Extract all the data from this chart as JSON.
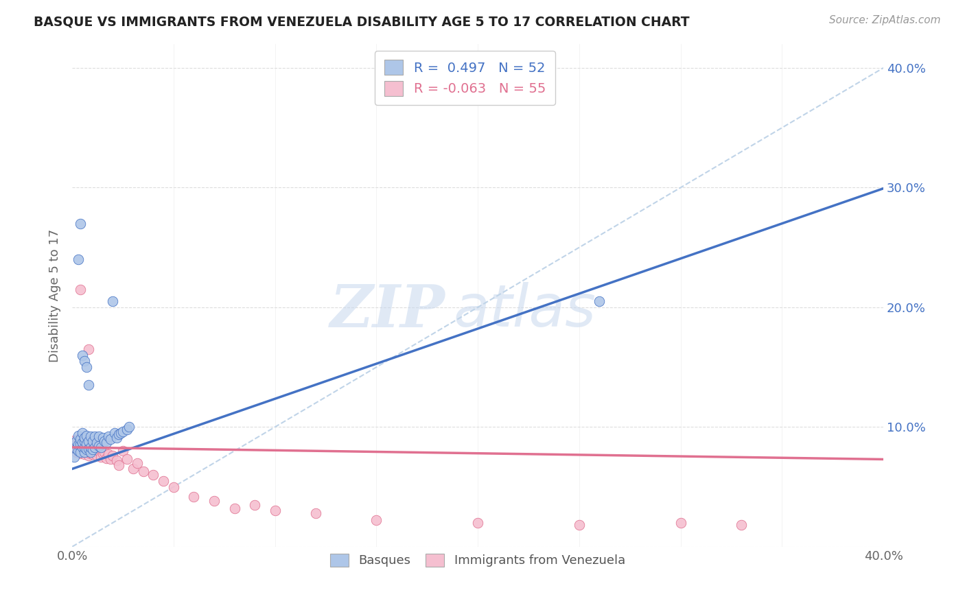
{
  "title": "BASQUE VS IMMIGRANTS FROM VENEZUELA DISABILITY AGE 5 TO 17 CORRELATION CHART",
  "source": "Source: ZipAtlas.com",
  "ylabel": "Disability Age 5 to 17",
  "xlim": [
    0.0,
    0.4
  ],
  "ylim": [
    0.0,
    0.42
  ],
  "basque_color": "#aec6e8",
  "venezuela_color": "#f5bfd0",
  "basque_line_color": "#4472c4",
  "venezuela_line_color": "#e07090",
  "diagonal_color": "#c0d4e8",
  "R_basque": 0.497,
  "N_basque": 52,
  "R_venezuela": -0.063,
  "N_venezuela": 55,
  "legend_label_basque": "Basques",
  "legend_label_venezuela": "Immigrants from Venezuela",
  "watermark_zip": "ZIP",
  "watermark_atlas": "atlas",
  "basque_x": [
    0.001,
    0.002,
    0.002,
    0.003,
    0.003,
    0.003,
    0.004,
    0.004,
    0.004,
    0.005,
    0.005,
    0.005,
    0.006,
    0.006,
    0.006,
    0.006,
    0.007,
    0.007,
    0.007,
    0.008,
    0.008,
    0.009,
    0.009,
    0.009,
    0.01,
    0.01,
    0.011,
    0.011,
    0.012,
    0.013,
    0.013,
    0.014,
    0.015,
    0.016,
    0.017,
    0.018,
    0.019,
    0.021,
    0.022,
    0.023,
    0.024,
    0.025,
    0.027,
    0.028,
    0.003,
    0.004,
    0.005,
    0.006,
    0.007,
    0.008,
    0.02,
    0.26
  ],
  "basque_y": [
    0.075,
    0.082,
    0.088,
    0.08,
    0.085,
    0.093,
    0.079,
    0.086,
    0.09,
    0.083,
    0.087,
    0.095,
    0.079,
    0.083,
    0.088,
    0.091,
    0.081,
    0.086,
    0.093,
    0.082,
    0.088,
    0.079,
    0.083,
    0.092,
    0.081,
    0.088,
    0.083,
    0.092,
    0.087,
    0.084,
    0.092,
    0.083,
    0.091,
    0.088,
    0.087,
    0.092,
    0.09,
    0.095,
    0.091,
    0.094,
    0.095,
    0.096,
    0.098,
    0.1,
    0.24,
    0.27,
    0.16,
    0.155,
    0.15,
    0.135,
    0.205,
    0.205
  ],
  "venezuela_x": [
    0.001,
    0.001,
    0.002,
    0.002,
    0.003,
    0.003,
    0.003,
    0.004,
    0.004,
    0.005,
    0.005,
    0.005,
    0.006,
    0.006,
    0.007,
    0.007,
    0.008,
    0.008,
    0.009,
    0.009,
    0.01,
    0.01,
    0.011,
    0.012,
    0.013,
    0.014,
    0.015,
    0.016,
    0.017,
    0.018,
    0.019,
    0.02,
    0.022,
    0.023,
    0.025,
    0.027,
    0.03,
    0.032,
    0.035,
    0.04,
    0.045,
    0.05,
    0.06,
    0.07,
    0.08,
    0.09,
    0.1,
    0.12,
    0.15,
    0.2,
    0.25,
    0.3,
    0.33,
    0.004,
    0.008
  ],
  "venezuela_y": [
    0.083,
    0.089,
    0.079,
    0.086,
    0.081,
    0.086,
    0.09,
    0.078,
    0.085,
    0.08,
    0.084,
    0.088,
    0.077,
    0.083,
    0.079,
    0.085,
    0.076,
    0.082,
    0.078,
    0.083,
    0.077,
    0.082,
    0.079,
    0.076,
    0.08,
    0.075,
    0.078,
    0.079,
    0.074,
    0.077,
    0.073,
    0.076,
    0.072,
    0.068,
    0.08,
    0.073,
    0.065,
    0.07,
    0.063,
    0.06,
    0.055,
    0.05,
    0.042,
    0.038,
    0.032,
    0.035,
    0.03,
    0.028,
    0.022,
    0.02,
    0.018,
    0.02,
    0.018,
    0.215,
    0.165
  ]
}
